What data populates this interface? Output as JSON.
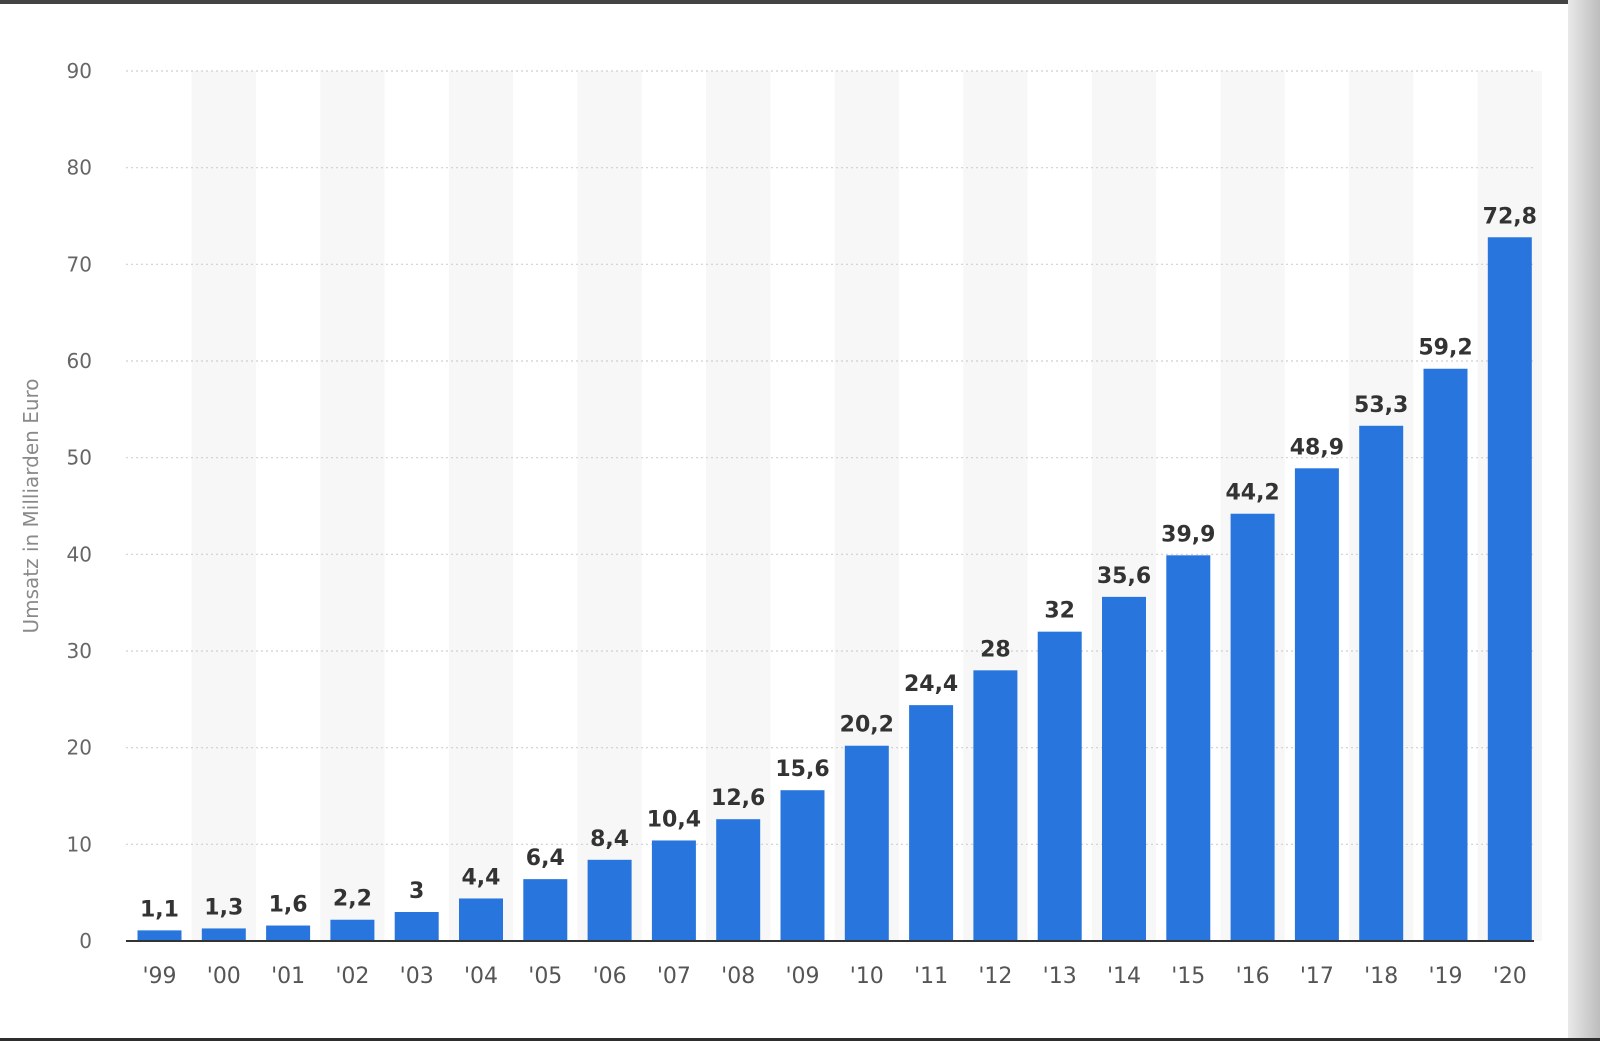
{
  "chart_data": {
    "type": "bar",
    "title": "",
    "xlabel": "",
    "ylabel": "Umsatz in Milliarden Euro",
    "ylim": [
      0,
      90
    ],
    "yticks": [
      "0",
      "10",
      "20",
      "30",
      "40",
      "50",
      "60",
      "70",
      "80",
      "90"
    ],
    "categories": [
      "'99",
      "'00",
      "'01",
      "'02",
      "'03",
      "'04",
      "'05",
      "'06",
      "'07",
      "'08",
      "'09",
      "'10",
      "'11",
      "'12",
      "'13",
      "'14",
      "'15",
      "'16",
      "'17",
      "'18",
      "'19",
      "'20"
    ],
    "values": [
      1.1,
      1.3,
      1.6,
      2.2,
      3,
      4.4,
      6.4,
      8.4,
      10.4,
      12.6,
      15.6,
      20.2,
      24.4,
      28,
      32,
      35.6,
      39.9,
      44.2,
      48.9,
      53.3,
      59.2,
      72.8
    ],
    "value_labels": [
      "1,1",
      "1,3",
      "1,6",
      "2,2",
      "3",
      "4,4",
      "6,4",
      "8,4",
      "10,4",
      "12,6",
      "15,6",
      "20,2",
      "24,4",
      "28",
      "32",
      "35,6",
      "39,9",
      "44,2",
      "48,9",
      "53,3",
      "59,2",
      "72,8"
    ],
    "grid": true,
    "alternating_column_shading": true,
    "colors": {
      "bar": "#2876dd",
      "band": "#f7f7f7",
      "grid": "#cfcfcf",
      "axis": "#333333"
    }
  }
}
